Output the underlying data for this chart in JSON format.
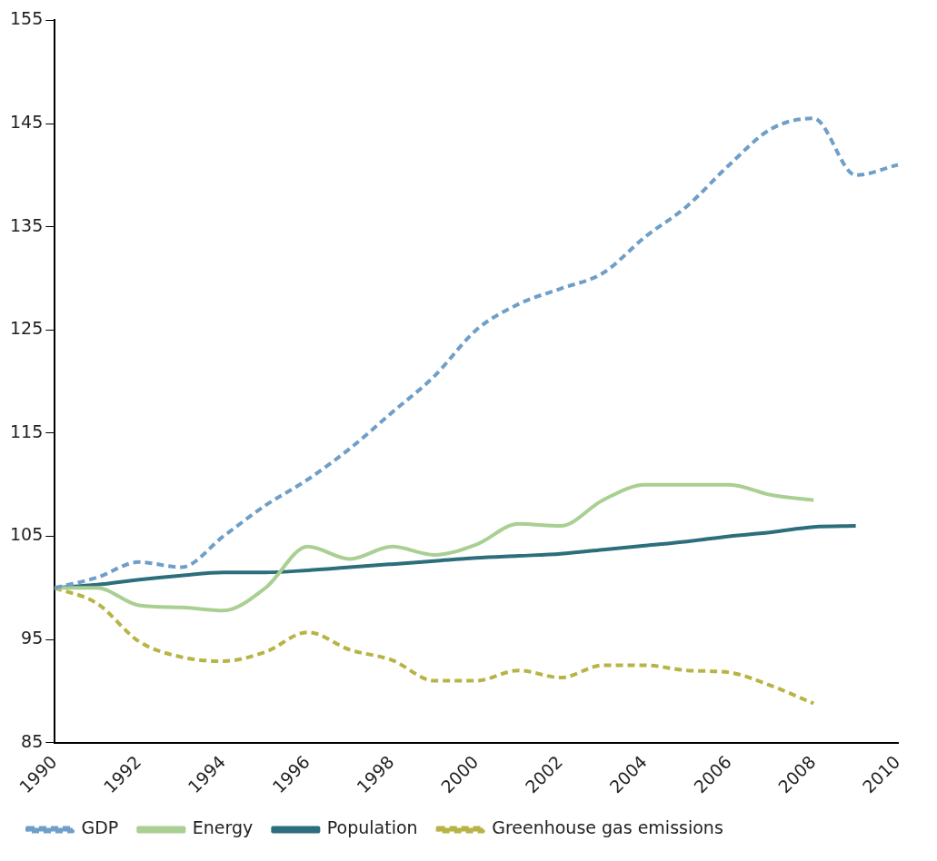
{
  "chart_data": {
    "type": "line",
    "categories": [
      "1990",
      null,
      "1992",
      null,
      "1994",
      null,
      "1996",
      null,
      "1998",
      null,
      "2000",
      null,
      "2002",
      null,
      "2004",
      null,
      "2006",
      null,
      "2008",
      null,
      "2010"
    ],
    "series": [
      {
        "name": "GDP",
        "color": "#6f9fc8",
        "line_style": "dashed",
        "values": [
          100,
          101,
          102.5,
          102,
          105,
          108,
          110.5,
          113.5,
          117,
          120.5,
          125,
          127.5,
          129,
          130.5,
          134,
          137,
          141,
          144.5,
          145.5,
          140,
          141
        ]
      },
      {
        "name": "Energy",
        "color": "#a9cf93",
        "line_style": "solid",
        "values": [
          100,
          100,
          98.3,
          98.1,
          97.8,
          100,
          104,
          102.8,
          104,
          103.2,
          104.2,
          106.2,
          106,
          108.5,
          110,
          110,
          110,
          109,
          108.5,
          null,
          null
        ]
      },
      {
        "name": "Population",
        "color": "#2d6e7c",
        "line_style": "solid",
        "values": [
          100,
          100.3,
          100.8,
          101.2,
          101.5,
          101.5,
          101.7,
          102,
          102.3,
          102.6,
          102.9,
          103.1,
          103.3,
          103.7,
          104.1,
          104.5,
          105,
          105.4,
          105.9,
          106,
          null
        ]
      },
      {
        "name": "Greenhouse gas emissions",
        "color": "#b7b445",
        "line_style": "dashed",
        "values": [
          100,
          98.5,
          94.8,
          93.3,
          92.9,
          93.8,
          95.7,
          94,
          93,
          91,
          91,
          92,
          91.3,
          92.5,
          92.5,
          92,
          91.8,
          90.5,
          88.8,
          null,
          null
        ]
      }
    ],
    "ylim": [
      85,
      155
    ],
    "yticks": [
      85,
      95,
      105,
      115,
      125,
      135,
      145,
      155
    ],
    "grid": false,
    "legend": "bottom",
    "marker": "none"
  }
}
